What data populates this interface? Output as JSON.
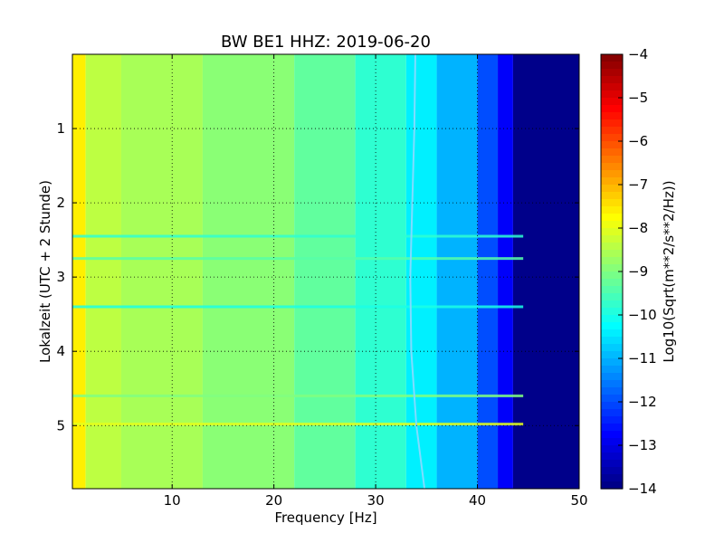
{
  "chart_data": {
    "type": "heatmap",
    "title": "BW BE1 HHZ: 2019-06-20",
    "xlabel": "Frequency [Hz]",
    "ylabel": "Lokalzeit (UTC + 2 Stunde)",
    "colorbar_label": "Log10(Sqrt(m**2/s**2/Hz))",
    "xlim": [
      0.2,
      50
    ],
    "ylim": [
      5.85,
      0
    ],
    "xticks": [
      10,
      20,
      30,
      40,
      50
    ],
    "yticks": [
      1,
      2,
      3,
      4,
      5
    ],
    "cbar_range": [
      -14,
      -4
    ],
    "cbar_ticks": [
      -4,
      -5,
      -6,
      -7,
      -8,
      -9,
      -10,
      -11,
      -12,
      -13,
      -14
    ],
    "colormap": "jet",
    "grid": true,
    "bands": [
      {
        "from_hz": 0.2,
        "to_hz": 1.5,
        "level": -7.6
      },
      {
        "from_hz": 1.5,
        "to_hz": 5,
        "level": -8.4
      },
      {
        "from_hz": 5,
        "to_hz": 13,
        "level": -8.6
      },
      {
        "from_hz": 13,
        "to_hz": 22,
        "level": -8.9
      },
      {
        "from_hz": 22,
        "to_hz": 28,
        "level": -9.3
      },
      {
        "from_hz": 28,
        "to_hz": 33,
        "level": -9.8
      },
      {
        "from_hz": 33,
        "to_hz": 36,
        "level": -10.4
      },
      {
        "from_hz": 36,
        "to_hz": 40,
        "level": -11.0
      },
      {
        "from_hz": 40,
        "to_hz": 42,
        "level": -12.0
      },
      {
        "from_hz": 42,
        "to_hz": 43.5,
        "level": -12.8
      },
      {
        "from_hz": 43.5,
        "to_hz": 50,
        "level": -13.9
      }
    ],
    "horizontal_lines": [
      {
        "time_h": 2.45,
        "level": -9.8
      },
      {
        "time_h": 2.75,
        "level": -9.4
      },
      {
        "time_h": 3.4,
        "level": -10.0
      },
      {
        "time_h": 4.6,
        "level": -9.0
      },
      {
        "time_h": 4.98,
        "level": -8.0
      }
    ],
    "tonal_line": [
      {
        "time_h": 0.0,
        "freq_hz": 33.9
      },
      {
        "time_h": 1.0,
        "freq_hz": 33.8
      },
      {
        "time_h": 2.0,
        "freq_hz": 33.6
      },
      {
        "time_h": 3.0,
        "freq_hz": 33.4
      },
      {
        "time_h": 4.0,
        "freq_hz": 33.5
      },
      {
        "time_h": 5.0,
        "freq_hz": 34.0
      },
      {
        "time_h": 5.85,
        "freq_hz": 34.8
      }
    ]
  }
}
